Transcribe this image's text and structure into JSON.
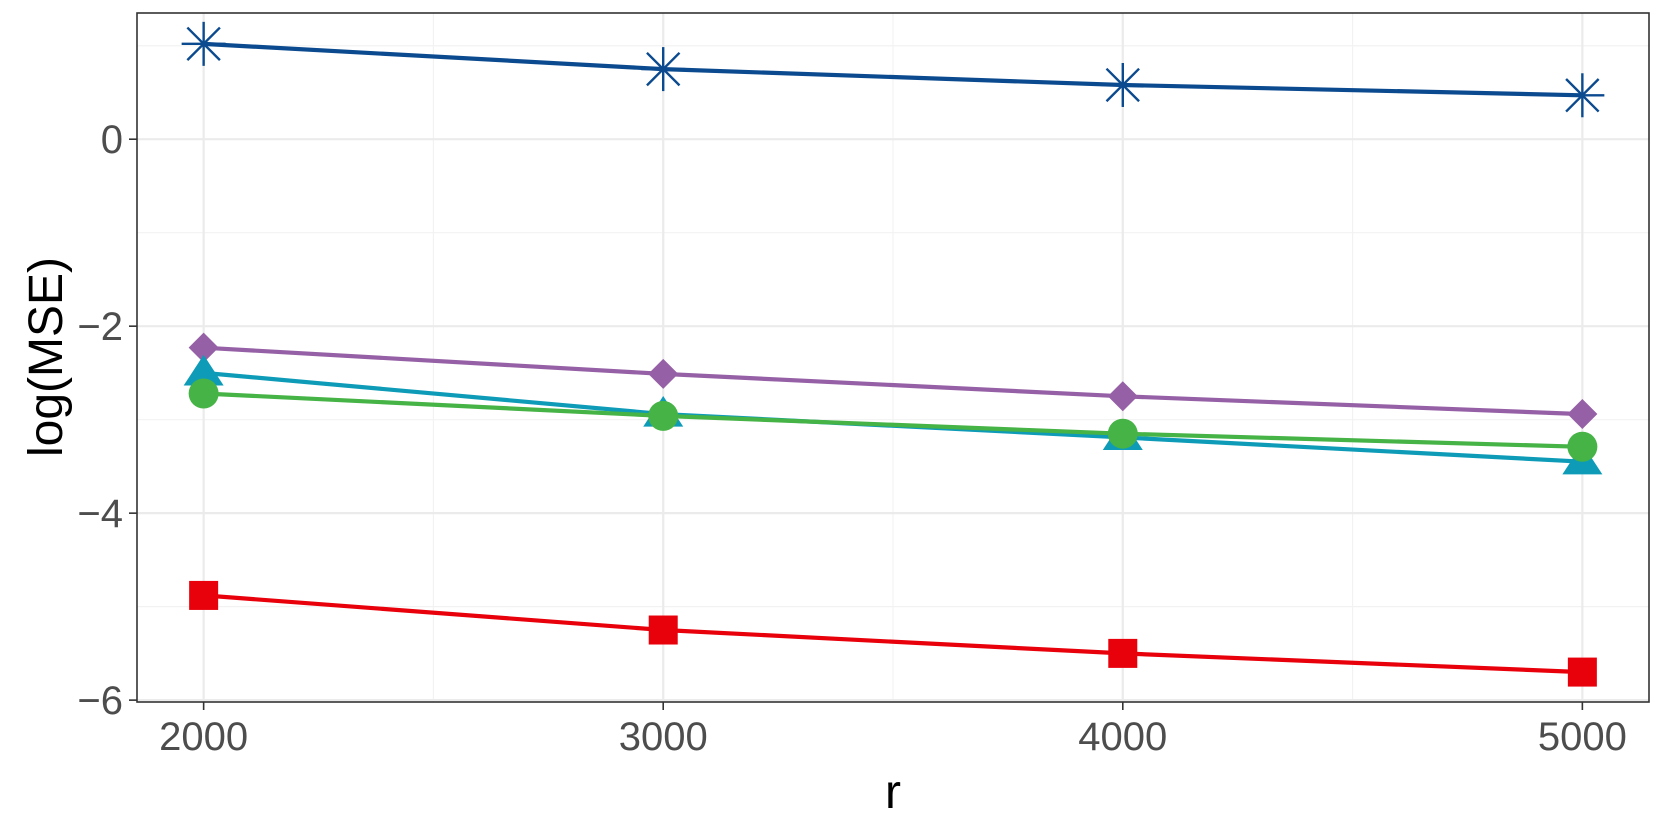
{
  "chart_data": {
    "type": "line",
    "title": "",
    "xlabel": "r",
    "ylabel": "log(MSE)",
    "x": [
      2000,
      3000,
      4000,
      5000
    ],
    "xlim": [
      1855,
      5145
    ],
    "ylim": [
      -6.02,
      1.35
    ],
    "x_ticks": [
      2000,
      3000,
      4000,
      5000
    ],
    "y_ticks": [
      -6,
      -4,
      -2,
      0
    ],
    "x_tick_labels": [
      "2000",
      "3000",
      "4000",
      "5000"
    ],
    "y_tick_labels": [
      "−6",
      "−4",
      "−2",
      "0"
    ],
    "grid": true,
    "legend": "none",
    "series": [
      {
        "marker": "asterisk",
        "color": "#0b4a8f",
        "values": [
          1.02,
          0.75,
          0.58,
          0.47
        ]
      },
      {
        "marker": "diamond",
        "color": "#9560a5",
        "values": [
          -2.23,
          -2.51,
          -2.75,
          -2.94
        ]
      },
      {
        "marker": "triangle",
        "color": "#0d9bb8",
        "values": [
          -2.5,
          -2.94,
          -3.19,
          -3.45
        ]
      },
      {
        "marker": "circle",
        "color": "#45b345",
        "values": [
          -2.72,
          -2.96,
          -3.15,
          -3.29
        ]
      },
      {
        "marker": "square",
        "color": "#e8000b",
        "values": [
          -4.88,
          -5.25,
          -5.5,
          -5.7
        ]
      }
    ]
  }
}
